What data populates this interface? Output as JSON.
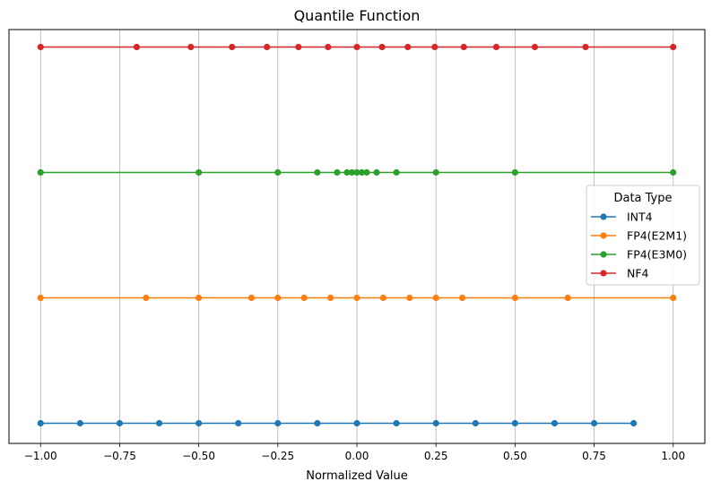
{
  "chart_data": {
    "type": "line",
    "title": "Quantile Function",
    "xlabel": "Normalized Value",
    "ylabel": "",
    "xlim": [
      -1.1,
      1.1
    ],
    "x_ticks": [
      -1.0,
      -0.75,
      -0.5,
      -0.25,
      0.0,
      0.25,
      0.5,
      0.75,
      1.0
    ],
    "x_tick_labels": [
      "−1.00",
      "−0.75",
      "−0.50",
      "−0.25",
      "0.00",
      "0.25",
      "0.50",
      "0.75",
      "1.00"
    ],
    "grid": "vertical",
    "legend": {
      "title": "Data Type",
      "placement": "center-right"
    },
    "series": [
      {
        "name": "INT4",
        "color": "#1f77b4",
        "row": 0,
        "values": [
          -1.0,
          -0.875,
          -0.75,
          -0.625,
          -0.5,
          -0.375,
          -0.25,
          -0.125,
          0.0,
          0.125,
          0.25,
          0.375,
          0.5,
          0.625,
          0.75,
          0.875
        ]
      },
      {
        "name": "FP4(E2M1)",
        "color": "#ff7f0e",
        "row": 1,
        "values": [
          -1.0,
          -0.6667,
          -0.5,
          -0.3333,
          -0.25,
          -0.1667,
          -0.0833,
          0.0,
          0.0833,
          0.1667,
          0.25,
          0.3333,
          0.5,
          0.6667,
          1.0
        ]
      },
      {
        "name": "FP4(E3M0)",
        "color": "#2ca02c",
        "row": 2,
        "values": [
          -1.0,
          -0.5,
          -0.25,
          -0.125,
          -0.0625,
          -0.03125,
          -0.015625,
          0.0,
          0.015625,
          0.03125,
          0.0625,
          0.125,
          0.25,
          0.5,
          1.0
        ]
      },
      {
        "name": "NF4",
        "color": "#d62728",
        "row": 3,
        "values": [
          -1.0,
          -0.6962,
          -0.5251,
          -0.3949,
          -0.2844,
          -0.1848,
          -0.0911,
          0.0,
          0.0796,
          0.1609,
          0.2461,
          0.3379,
          0.4407,
          0.5626,
          0.723,
          1.0
        ]
      }
    ]
  }
}
